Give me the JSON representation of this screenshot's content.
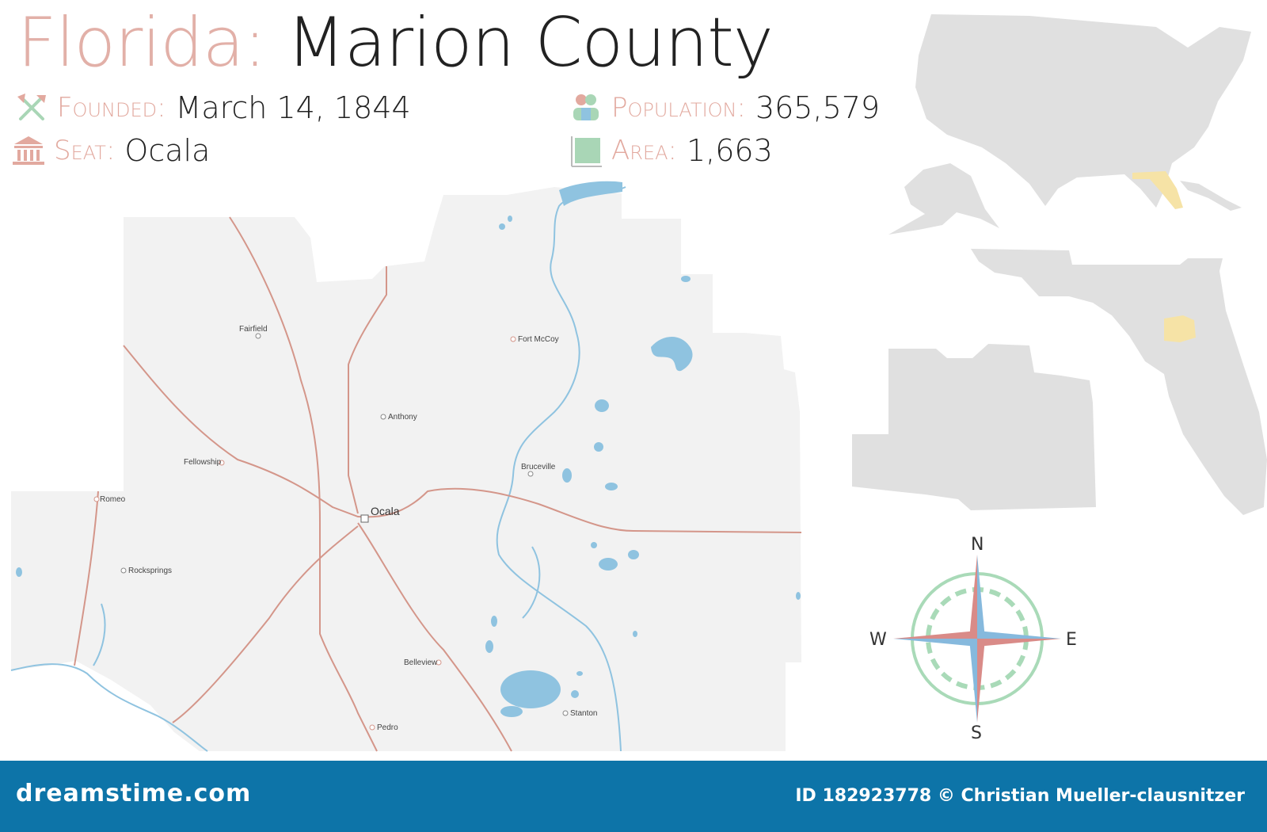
{
  "title": {
    "state": "Florida:",
    "county": "Marion County"
  },
  "facts": {
    "founded": {
      "label": "Founded:",
      "value": "March 14, 1844",
      "icon": "shovel-axe-icon"
    },
    "seat": {
      "label": "Seat:",
      "value": "Ocala",
      "icon": "courthouse-icon"
    },
    "population": {
      "label": "Population:",
      "value": "365,579",
      "icon": "people-icon"
    },
    "area": {
      "label": "Area:",
      "value": "1,663",
      "icon": "area-square-icon"
    }
  },
  "map": {
    "county_seat": "Ocala",
    "towns": [
      "Fairfield",
      "Fort McCoy",
      "Anthony",
      "Fellowship",
      "Bruceville",
      "Romeo",
      "Rocksprings",
      "Belleview",
      "Pedro",
      "Stanton"
    ]
  },
  "compass": {
    "n": "N",
    "s": "S",
    "e": "E",
    "w": "W"
  },
  "colors": {
    "land": "#f2f2f2",
    "water": "#8fc3e0",
    "road": "#d4968a",
    "inset_land": "#e0e0e0",
    "highlight": "#f6e3a6",
    "title_accent": "#e2b0a8",
    "compass_red": "#d98b88",
    "compass_blue": "#86b9dd",
    "compass_green": "#a9dab8",
    "footer": "#0d74a8"
  },
  "footer": {
    "brand": "dreamstime.com",
    "credit": "ID 182923778 © Christian Mueller-clausnitzer"
  }
}
